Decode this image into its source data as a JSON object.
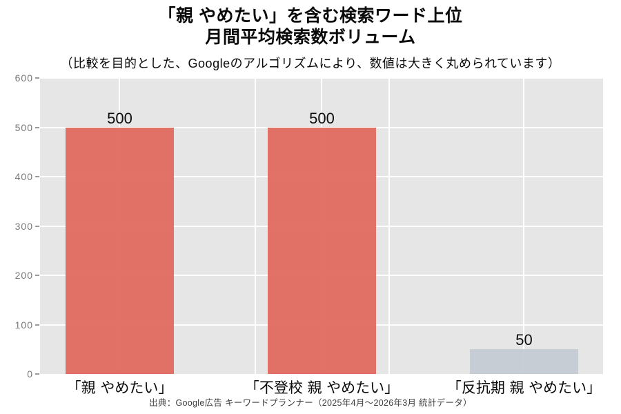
{
  "page": {
    "background": "#ffffff"
  },
  "chart_data": {
    "type": "bar",
    "title_lines": [
      "「親 やめたい」を含む検索ワード上位",
      "月間平均検索数ボリューム"
    ],
    "subtitle": "（比較を目的とした、Googleのアルゴリズムにより、数値は大きく丸められています）",
    "caption": "出典：Google広告 キーワードプランナー（2025年4月～2026年3月 統計データ）",
    "categories": [
      "「親 やめたい」",
      "「不登校 親 やめたい」",
      "「反抗期 親 やめたい」"
    ],
    "values": [
      500,
      500,
      50
    ],
    "value_labels": [
      "500",
      "500",
      "50"
    ],
    "bar_colors": [
      "#e0675b",
      "#e0675b",
      "#c4cad2"
    ],
    "xlabel": "",
    "ylabel": "",
    "ylim": [
      0,
      600
    ],
    "yticks": [
      0,
      100,
      200,
      300,
      400,
      500,
      600
    ],
    "grid": true,
    "legend": "none",
    "panel_bg": "#e6e6e6",
    "grid_color": "#ffffff",
    "tick_label_color": "#787878"
  }
}
